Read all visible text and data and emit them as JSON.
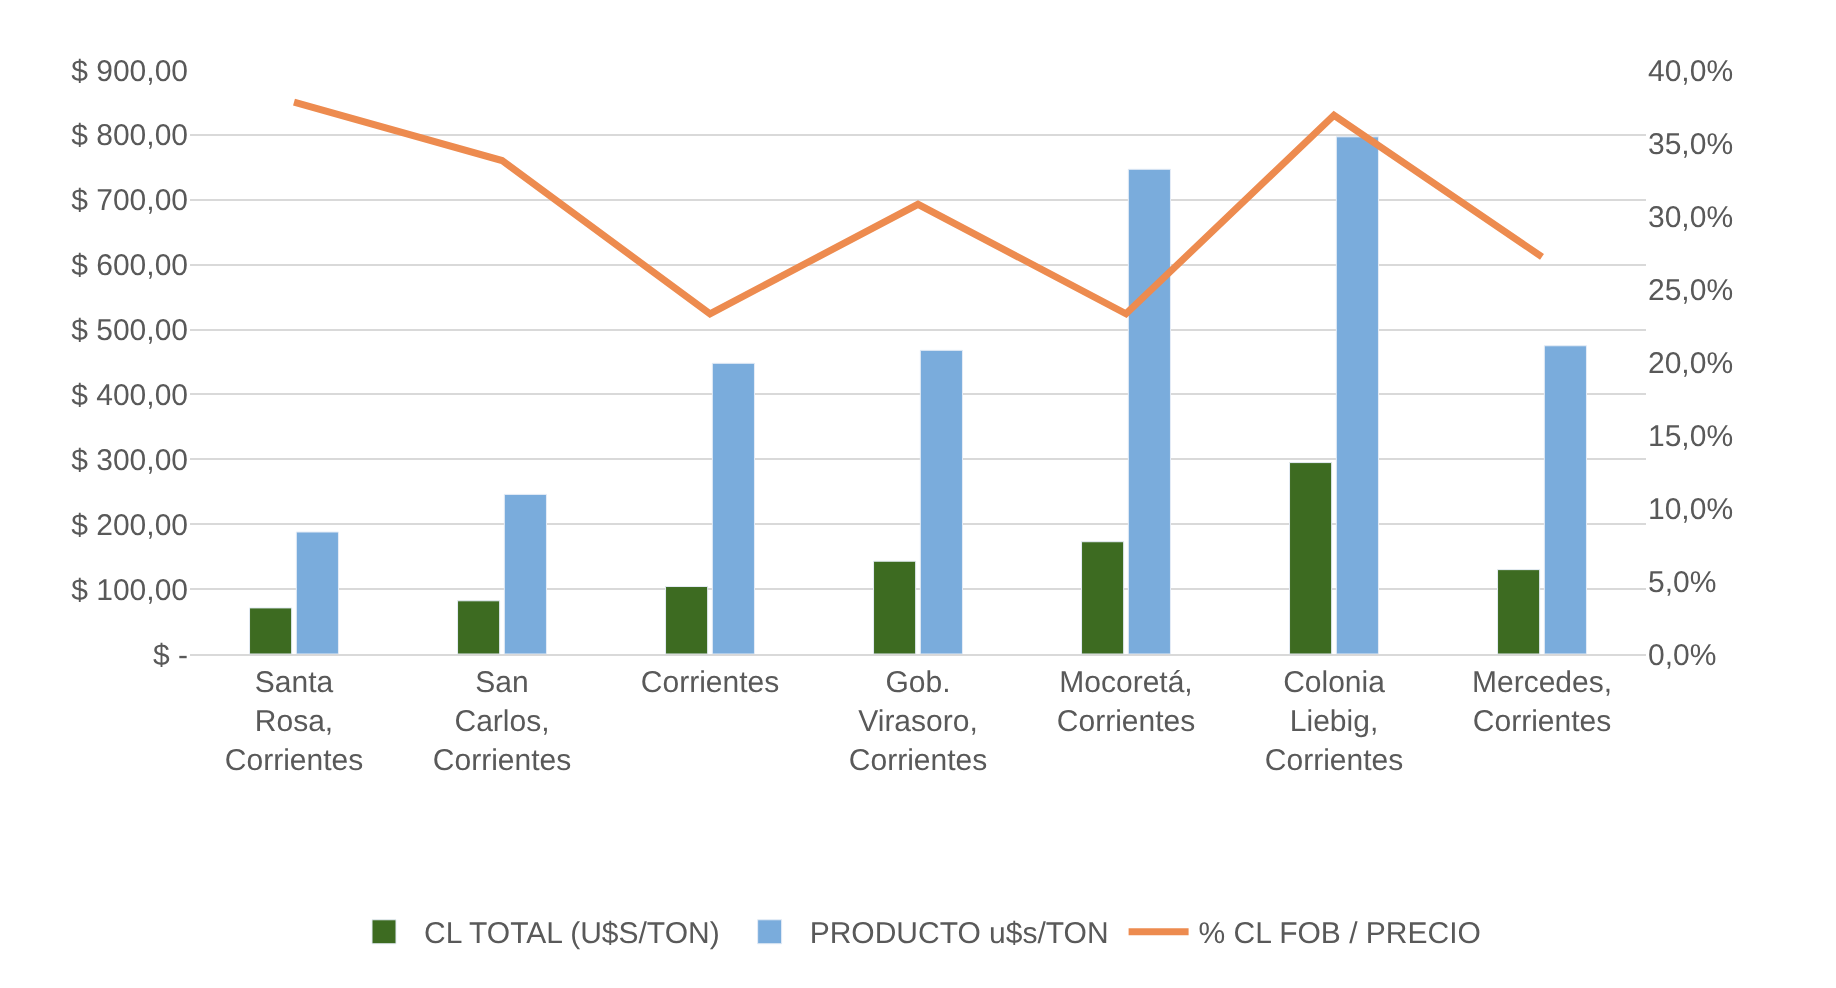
{
  "chart_data": {
    "type": "bar",
    "categories": [
      "Santa Rosa, Corrientes",
      "San Carlos, Corrientes",
      "Corrientes",
      "Gob. Virasoro, Corrientes",
      "Mocoretá, Corrientes",
      "Colonia Liebig, Corrientes",
      "Mercedes, Corrientes"
    ],
    "series": [
      {
        "name": "CL TOTAL (U$S/TON)",
        "color": "#3d6b21",
        "values": [
          71,
          82,
          104,
          143,
          173,
          295,
          130
        ]
      },
      {
        "name": "PRODUCTO u$s/TON",
        "color": "#7aacdc",
        "values": [
          188,
          246,
          448,
          468,
          747,
          797,
          475
        ]
      },
      {
        "name": "% CL FOB / PRECIO",
        "type": "line",
        "axis": "y2",
        "color": "#ed8b4f",
        "values": [
          37.8,
          33.8,
          23.3,
          30.8,
          23.3,
          36.9,
          27.2
        ]
      }
    ],
    "ylim": [
      0,
      900
    ],
    "yticks": [
      {
        "value": 0,
        "label": "$ -"
      },
      {
        "value": 100,
        "label": "$ 100,00"
      },
      {
        "value": 200,
        "label": "$ 200,00"
      },
      {
        "value": 300,
        "label": "$ 300,00"
      },
      {
        "value": 400,
        "label": "$ 400,00"
      },
      {
        "value": 500,
        "label": "$ 500,00"
      },
      {
        "value": 600,
        "label": "$ 600,00"
      },
      {
        "value": 700,
        "label": "$ 700,00"
      },
      {
        "value": 800,
        "label": "$ 800,00"
      },
      {
        "value": 900,
        "label": "$ 900,00"
      }
    ],
    "y2lim": [
      0,
      40
    ],
    "y2ticks": [
      {
        "value": 0,
        "label": "0,0%"
      },
      {
        "value": 5,
        "label": "5,0%"
      },
      {
        "value": 10,
        "label": "10,0%"
      },
      {
        "value": 15,
        "label": "15,0%"
      },
      {
        "value": 20,
        "label": "20,0%"
      },
      {
        "value": 25,
        "label": "25,0%"
      },
      {
        "value": 30,
        "label": "30,0%"
      },
      {
        "value": 35,
        "label": "35,0%"
      },
      {
        "value": 40,
        "label": "40,0%"
      }
    ],
    "grid": "y",
    "legend": "bottom",
    "marker": "none"
  }
}
